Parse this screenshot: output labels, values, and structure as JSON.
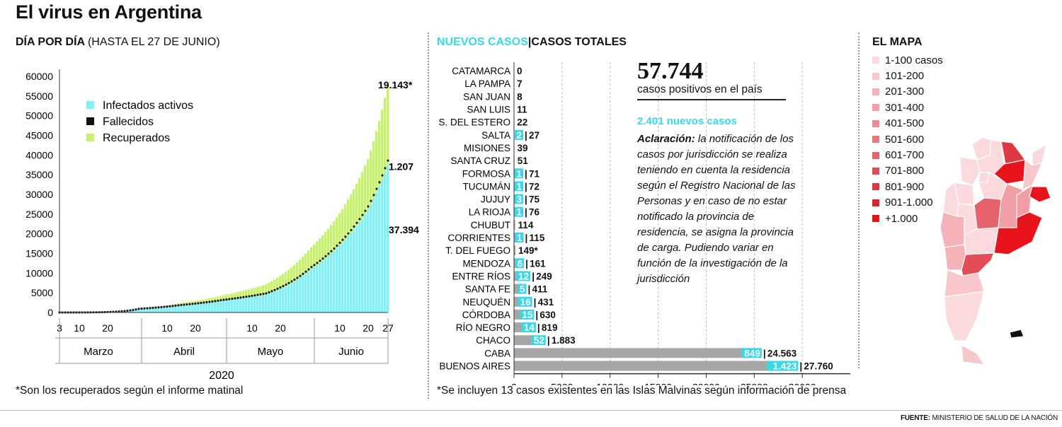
{
  "header": {
    "title": "El virus en Argentina"
  },
  "left_panel": {
    "heading_bold": "DÍA POR DÍA",
    "heading_light": "(HASTA EL 27 DE JUNIO)",
    "footnote": "*Son los recuperados según el informe matinal"
  },
  "middle_panel": {
    "heading_new": "NUEVOS CASOS",
    "heading_sep": "|",
    "heading_total": "CASOS TOTALES",
    "footnote": "*Se incluyen 13 casos existentes en las Islas Malvinas según información de prensa"
  },
  "summary": {
    "total": "57.744",
    "total_label": "casos positivos en el país",
    "new_cases": "2.401 nuevos casos",
    "note_bold": "Aclaración:",
    "note_text": "la notificación de los casos por jurisdicción se realiza teniendo en cuenta la residencia según el Registro Nacional de las Personas y en caso de no estar notificado la provincia de residencia, se asigna la provincia de carga. Pudiendo variar en función de la investigación de la jurisdicción"
  },
  "map": {
    "heading": "EL MAPA",
    "legend": [
      {
        "label": "1-100 casos",
        "color": "#fadadd"
      },
      {
        "label": "101-200",
        "color": "#f8c7cc"
      },
      {
        "label": "201-300",
        "color": "#f5b3b9"
      },
      {
        "label": "301-400",
        "color": "#f29ea6"
      },
      {
        "label": "401-500",
        "color": "#ee8a93"
      },
      {
        "label": "501-600",
        "color": "#ea757f"
      },
      {
        "label": "601-700",
        "color": "#e6616b"
      },
      {
        "label": "701-800",
        "color": "#e24c57"
      },
      {
        "label": "801-900",
        "color": "#de3843"
      },
      {
        "label": "901-1.000",
        "color": "#d9242f"
      },
      {
        "label": "+1.000",
        "color": "#e8141c"
      }
    ]
  },
  "source": {
    "label": "FUENTE:",
    "text": "MINISTERIO DE SALUD DE LA NACIÓN"
  },
  "chart_data": [
    {
      "type": "area",
      "title": "DÍA POR DÍA (HASTA EL 27 DE JUNIO)",
      "xlabel": "2020",
      "ylim": [
        0,
        60000
      ],
      "yticks": [
        0,
        5000,
        10000,
        15000,
        20000,
        25000,
        30000,
        35000,
        40000,
        45000,
        50000,
        55000,
        60000
      ],
      "ytick_labels": [
        "0",
        "5000",
        "10000",
        "15000",
        "20000",
        "25000",
        "30000",
        "35000",
        "40000",
        "45000",
        "50000",
        "55000",
        "60000"
      ],
      "x_start": "2020-03-03",
      "x_end": "2020-06-27",
      "x_tick_labels": [
        {
          "label": "3",
          "date": "2020-03-03"
        },
        {
          "label": "10",
          "date": "2020-03-10"
        },
        {
          "label": "20",
          "date": "2020-03-20"
        },
        {
          "label": "10",
          "date": "2020-04-10"
        },
        {
          "label": "20",
          "date": "2020-04-20"
        },
        {
          "label": "10",
          "date": "2020-05-10"
        },
        {
          "label": "20",
          "date": "2020-05-20"
        },
        {
          "label": "10",
          "date": "2020-06-10"
        },
        {
          "label": "20",
          "date": "2020-06-20"
        },
        {
          "label": "27",
          "date": "2020-06-27"
        }
      ],
      "months": [
        "Marzo",
        "Abril",
        "Mayo",
        "Junio"
      ],
      "legend": [
        "Infectados activos",
        "Fallecidos",
        "Recuperados"
      ],
      "colors": {
        "activos": "#7ff0f5",
        "fallecidos": "#111111",
        "recuperados": "#c8f26b"
      },
      "series": [
        {
          "name": "Infectados activos",
          "points": [
            [
              "2020-03-03",
              1
            ],
            [
              "2020-03-20",
              120
            ],
            [
              "2020-03-31",
              900
            ],
            [
              "2020-04-15",
              1800
            ],
            [
              "2020-04-30",
              3000
            ],
            [
              "2020-05-15",
              4500
            ],
            [
              "2020-05-31",
              11000
            ],
            [
              "2020-06-10",
              17000
            ],
            [
              "2020-06-20",
              26000
            ],
            [
              "2020-06-27",
              37394
            ]
          ]
        },
        {
          "name": "Recuperados",
          "points": [
            [
              "2020-03-03",
              0
            ],
            [
              "2020-03-20",
              10
            ],
            [
              "2020-03-31",
              100
            ],
            [
              "2020-04-15",
              500
            ],
            [
              "2020-04-30",
              1200
            ],
            [
              "2020-05-15",
              2300
            ],
            [
              "2020-05-31",
              5000
            ],
            [
              "2020-06-10",
              7500
            ],
            [
              "2020-06-20",
              12000
            ],
            [
              "2020-06-27",
              19143
            ]
          ]
        },
        {
          "name": "Fallecidos",
          "points": [
            [
              "2020-03-03",
              0
            ],
            [
              "2020-03-20",
              3
            ],
            [
              "2020-03-31",
              30
            ],
            [
              "2020-04-15",
              110
            ],
            [
              "2020-04-30",
              210
            ],
            [
              "2020-05-15",
              350
            ],
            [
              "2020-05-31",
              550
            ],
            [
              "2020-06-10",
              700
            ],
            [
              "2020-06-20",
              930
            ],
            [
              "2020-06-27",
              1207
            ]
          ]
        }
      ],
      "annotations": [
        {
          "label": "19.143*",
          "x": "2020-06-27",
          "y": 58000
        },
        {
          "label": "1.207",
          "x": "2020-06-27",
          "y": 38000
        },
        {
          "label": "37.394",
          "x": "2020-06-27",
          "y": 21000
        }
      ]
    },
    {
      "type": "bar",
      "orientation": "horizontal",
      "title": "NUEVOS CASOS | CASOS TOTALES",
      "xlim": [
        0,
        35000
      ],
      "xticks": [
        0,
        5000,
        10000,
        15000,
        20000,
        25000,
        30000
      ],
      "colors": {
        "total": "#a6a6a6",
        "new": "#38d8e8"
      },
      "categories": [
        "CATAMARCA",
        "LA PAMPA",
        "SAN JUAN",
        "SAN LUIS",
        "S. DEL ESTERO",
        "SALTA",
        "MISIONES",
        "SANTA CRUZ",
        "FORMOSA",
        "TUCUMÁN",
        "JUJUY",
        "LA RIOJA",
        "CHUBUT",
        "CORRIENTES",
        "T. DEL FUEGO",
        "MENDOZA",
        "ENTRE RÍOS",
        "SANTA FE",
        "NEUQUÉN",
        "CÓRDOBA",
        "RÍO NEGRO",
        "CHACO",
        "CABA",
        "BUENOS AIRES"
      ],
      "series": [
        {
          "name": "NUEVOS CASOS",
          "values": [
            0,
            0,
            0,
            0,
            0,
            2,
            0,
            0,
            1,
            1,
            3,
            1,
            0,
            1,
            0,
            6,
            12,
            5,
            16,
            15,
            14,
            52,
            849,
            1423
          ]
        },
        {
          "name": "CASOS TOTALES",
          "values": [
            0,
            7,
            8,
            11,
            22,
            27,
            39,
            51,
            71,
            72,
            75,
            76,
            114,
            115,
            149,
            161,
            249,
            411,
            431,
            630,
            819,
            1883,
            24563,
            27760
          ]
        }
      ],
      "new_labels": [
        "",
        "",
        "",
        "",
        "",
        "2",
        "",
        "",
        "1",
        "1",
        "3",
        "1",
        "",
        "1",
        "",
        "6",
        "12",
        "5",
        "16",
        "15",
        "14",
        "52",
        "849",
        "1.423"
      ],
      "total_labels": [
        "0",
        "7",
        "8",
        "11",
        "22",
        "27",
        "39",
        "51",
        "71",
        "72",
        "75",
        "76",
        "114",
        "115",
        "149*",
        "161",
        "249",
        "411",
        "431",
        "630",
        "819",
        "1.883",
        "24.563",
        "27.760"
      ]
    }
  ]
}
